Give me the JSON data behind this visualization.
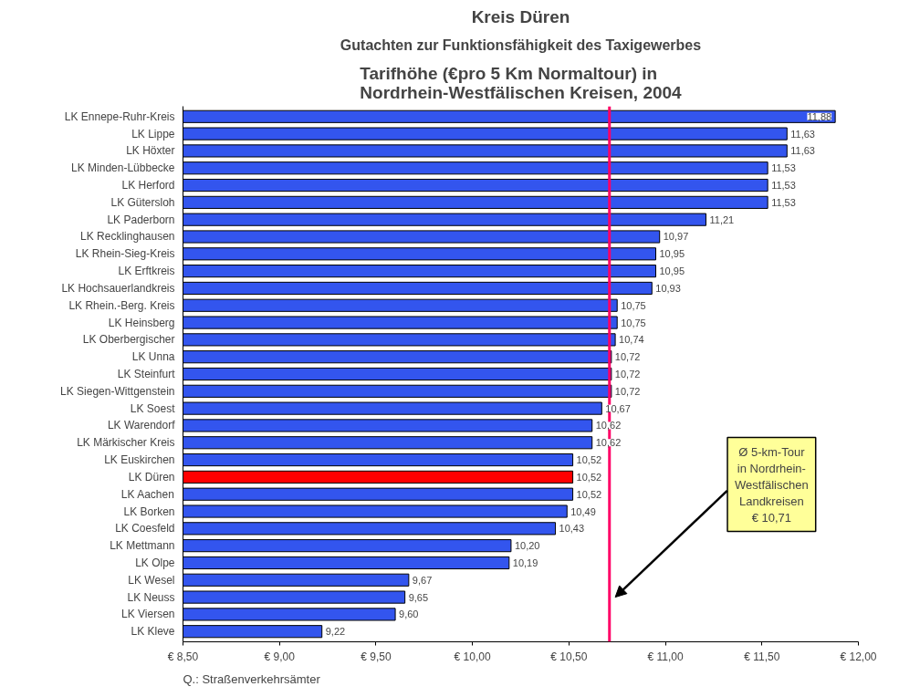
{
  "chart_data": {
    "type": "bar",
    "orientation": "horizontal",
    "title": "Tarifhöhe (€pro 5 Km Normaltour) in\nNordrhein-Westfälischen Kreisen, 2004",
    "annotations": [
      "Kreis Düren",
      "Gutachten zur Funktionsfähigkeit des Taxigewerbes",
      "Q.: Straßenverkehrsämter"
    ],
    "categories": [
      "LK Ennepe-Ruhr-Kreis",
      "LK Lippe",
      "LK Höxter",
      "LK Minden-Lübbecke",
      "LK Herford",
      "LK Gütersloh",
      "LK Paderborn",
      "LK Recklinghausen",
      "LK Rhein-Sieg-Kreis",
      "LK Erftkreis",
      "LK Hochsauerlandkreis",
      "LK Rhein.-Berg. Kreis",
      "LK Heinsberg",
      "LK Oberbergischer",
      "LK Unna",
      "LK Steinfurt",
      "LK Siegen-Wittgenstein",
      "LK Soest",
      "LK Warendorf",
      "LK Märkischer Kreis",
      "LK Euskirchen",
      "LK Düren",
      "LK Aachen",
      "LK Borken",
      "LK Coesfeld",
      "LK Mettmann",
      "LK Olpe",
      "LK Wesel",
      "LK Neuss",
      "LK Viersen",
      "LK Kleve"
    ],
    "values": [
      11.88,
      11.63,
      11.63,
      11.53,
      11.53,
      11.53,
      11.21,
      10.97,
      10.95,
      10.95,
      10.93,
      10.75,
      10.75,
      10.74,
      10.72,
      10.72,
      10.72,
      10.67,
      10.62,
      10.62,
      10.52,
      10.52,
      10.52,
      10.49,
      10.43,
      10.2,
      10.19,
      9.67,
      9.65,
      9.6,
      9.22
    ],
    "value_labels": [
      "11,88",
      "11,63",
      "11,63",
      "11,53",
      "11,53",
      "11,53",
      "11,21",
      "10,97",
      "10,95",
      "10,95",
      "10,93",
      "10,75",
      "10,75",
      "10,74",
      "10,72",
      "10,72",
      "10,72",
      "10,67",
      "10,62",
      "10,62",
      "10,52",
      "10,52",
      "10,52",
      "10,49",
      "10,43",
      "10,20",
      "10,19",
      "9,67",
      "9,65",
      "9,60",
      "9,22"
    ],
    "colors": [
      "#3355ee",
      "#3355ee",
      "#3355ee",
      "#3355ee",
      "#3355ee",
      "#3355ee",
      "#3355ee",
      "#3355ee",
      "#3355ee",
      "#3355ee",
      "#3355ee",
      "#3355ee",
      "#3355ee",
      "#3355ee",
      "#3355ee",
      "#3355ee",
      "#3355ee",
      "#3355ee",
      "#3355ee",
      "#3355ee",
      "#3355ee",
      "#ff0000",
      "#3355ee",
      "#3355ee",
      "#3355ee",
      "#3355ee",
      "#3355ee",
      "#3355ee",
      "#3355ee",
      "#3355ee",
      "#3355ee"
    ],
    "xlim": [
      8.5,
      12
    ],
    "xticks": [
      {
        "value": 8.5,
        "label": "€ 8,50"
      },
      {
        "value": 9.0,
        "label": "€ 9,00"
      },
      {
        "value": 9.5,
        "label": "€ 9,50"
      },
      {
        "value": 10.0,
        "label": "€ 10,00"
      },
      {
        "value": 10.5,
        "label": "€ 10,50"
      },
      {
        "value": 11.0,
        "label": "€ 11,00"
      },
      {
        "value": 11.5,
        "label": "€ 11,50"
      },
      {
        "value": 12.0,
        "label": "€ 12,00"
      }
    ],
    "ref_lines": [
      {
        "axis": "x",
        "value": 10.71,
        "label": "Ø 5-km-Tour\nin Nordrhein-\nWestfälischen\nLandkreisen\n€ 10,71",
        "color": "#ff0066"
      }
    ],
    "grid": false
  }
}
